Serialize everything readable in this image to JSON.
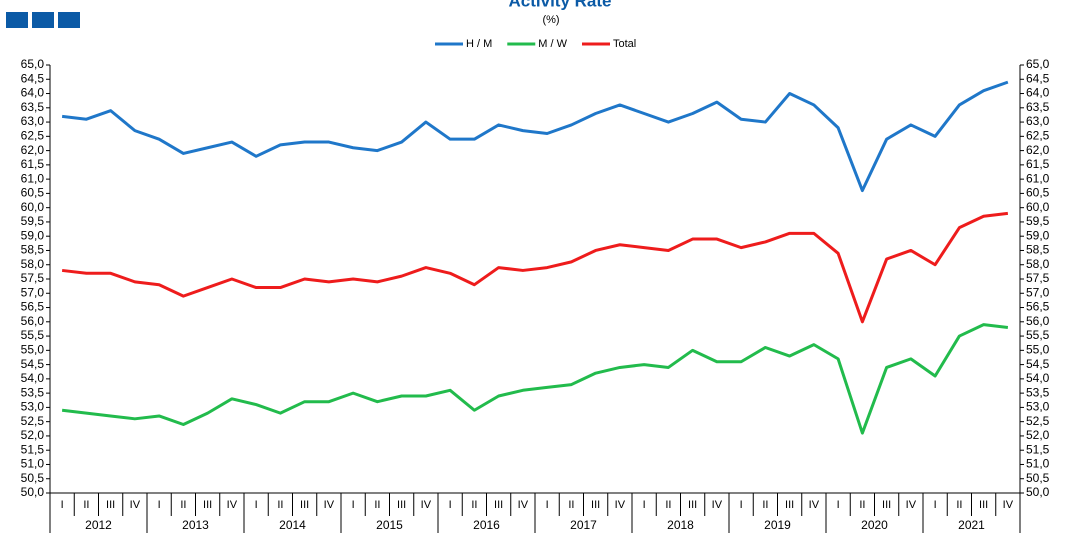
{
  "chart_data": {
    "type": "line",
    "title": "Activity Rate",
    "subtitle": "(%)",
    "categories": [
      "I",
      "II",
      "III",
      "IV",
      "I",
      "II",
      "III",
      "IV",
      "I",
      "II",
      "III",
      "IV",
      "I",
      "II",
      "III",
      "IV",
      "I",
      "II",
      "III",
      "IV",
      "I",
      "II",
      "III",
      "IV",
      "I",
      "II",
      "III",
      "IV",
      "I",
      "II",
      "III",
      "IV",
      "I",
      "II",
      "III",
      "IV",
      "I",
      "II",
      "III",
      "IV"
    ],
    "years": [
      "2012",
      "2013",
      "2014",
      "2015",
      "2016",
      "2017",
      "2018",
      "2019",
      "2020",
      "2021"
    ],
    "series": [
      {
        "name": "H / M",
        "color": "#1f77c9",
        "values": [
          63.2,
          63.1,
          63.4,
          62.7,
          62.4,
          61.9,
          62.1,
          62.3,
          61.8,
          62.2,
          62.3,
          62.3,
          62.1,
          62.0,
          62.3,
          63.0,
          62.4,
          62.4,
          62.9,
          62.7,
          62.6,
          62.9,
          63.3,
          63.6,
          63.3,
          63.0,
          63.3,
          63.7,
          63.1,
          63.0,
          64.0,
          63.6,
          62.8,
          60.6,
          62.4,
          62.9,
          62.5,
          63.6,
          64.1,
          64.4
        ]
      },
      {
        "name": "M / W",
        "color": "#22bb4c",
        "values": [
          52.9,
          52.8,
          52.7,
          52.6,
          52.7,
          52.4,
          52.8,
          53.3,
          53.1,
          52.8,
          53.2,
          53.2,
          53.5,
          53.2,
          53.4,
          53.4,
          53.6,
          52.9,
          53.4,
          53.6,
          53.7,
          53.8,
          54.2,
          54.4,
          54.5,
          54.4,
          55.0,
          54.6,
          54.6,
          55.1,
          54.8,
          55.2,
          54.7,
          52.1,
          54.4,
          54.7,
          54.1,
          55.5,
          55.9,
          55.8
        ]
      },
      {
        "name": "Total",
        "color": "#ee1c1c",
        "values": [
          57.8,
          57.7,
          57.7,
          57.4,
          57.3,
          56.9,
          57.2,
          57.5,
          57.2,
          57.2,
          57.5,
          57.4,
          57.5,
          57.4,
          57.6,
          57.9,
          57.7,
          57.3,
          57.9,
          57.8,
          57.9,
          58.1,
          58.5,
          58.7,
          58.6,
          58.5,
          58.9,
          58.9,
          58.6,
          58.8,
          59.1,
          59.1,
          58.4,
          56.0,
          58.2,
          58.5,
          58.0,
          59.3,
          59.7,
          59.8
        ]
      }
    ],
    "ylim": [
      50,
      65
    ],
    "yticks": [
      {
        "value": 50,
        "label": "50,0"
      },
      {
        "value": 50.5,
        "label": "50,5"
      },
      {
        "value": 51,
        "label": "51,0"
      },
      {
        "value": 51.5,
        "label": "51,5"
      },
      {
        "value": 52,
        "label": "52,0"
      },
      {
        "value": 52.5,
        "label": "52,5"
      },
      {
        "value": 53,
        "label": "53,0"
      },
      {
        "value": 53.5,
        "label": "53,5"
      },
      {
        "value": 54,
        "label": "54,0"
      },
      {
        "value": 54.5,
        "label": "54,5"
      },
      {
        "value": 55,
        "label": "55,0"
      },
      {
        "value": 55.5,
        "label": "55,5"
      },
      {
        "value": 56,
        "label": "56,0"
      },
      {
        "value": 56.5,
        "label": "56,5"
      },
      {
        "value": 57,
        "label": "57,0"
      },
      {
        "value": 57.5,
        "label": "57,5"
      },
      {
        "value": 58,
        "label": "58,0"
      },
      {
        "value": 58.5,
        "label": "58,5"
      },
      {
        "value": 59,
        "label": "59,0"
      },
      {
        "value": 59.5,
        "label": "59,5"
      },
      {
        "value": 60,
        "label": "60,0"
      },
      {
        "value": 60.5,
        "label": "60,5"
      },
      {
        "value": 61,
        "label": "61,0"
      },
      {
        "value": 61.5,
        "label": "61,5"
      },
      {
        "value": 62,
        "label": "62,0"
      },
      {
        "value": 62.5,
        "label": "62,5"
      },
      {
        "value": 63,
        "label": "63,0"
      },
      {
        "value": 63.5,
        "label": "63,5"
      },
      {
        "value": 64,
        "label": "64,0"
      },
      {
        "value": 64.5,
        "label": "64,5"
      },
      {
        "value": 65,
        "label": "65,0"
      }
    ],
    "grid": false
  }
}
